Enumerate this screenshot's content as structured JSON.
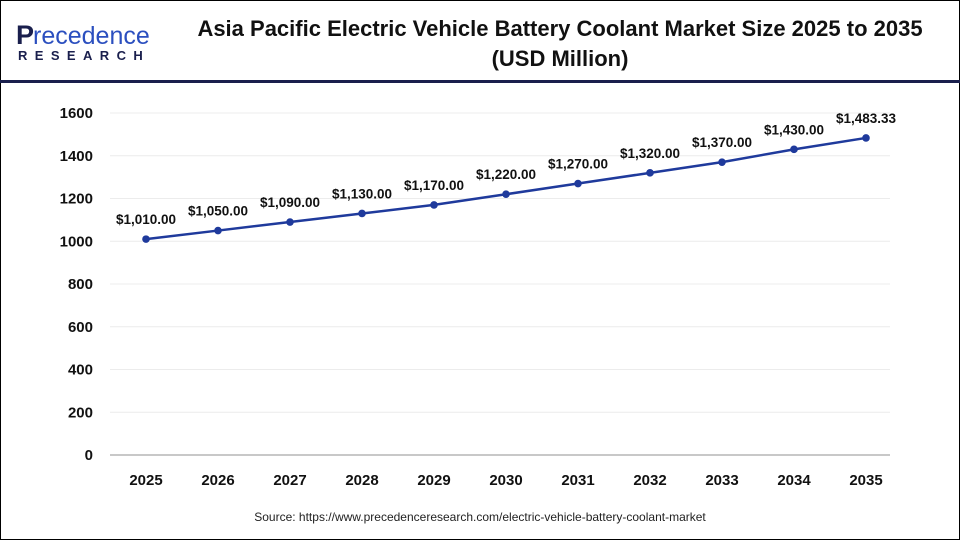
{
  "brand": {
    "logo_text": "Precedence",
    "logo_subtext": "RESEARCH"
  },
  "header": {
    "title_line1": "Asia Pacific Electric Vehicle Battery Coolant Market Size 2025 to 2035",
    "title_line2": "(USD Million)"
  },
  "source": "Source: https://www.precedenceresearch.com/electric-vehicle-battery-coolant-market",
  "chart_data": {
    "type": "line",
    "title": "Asia Pacific Electric Vehicle Battery Coolant Market Size 2025 to 2035 (USD Million)",
    "categories": [
      "2025",
      "2026",
      "2027",
      "2028",
      "2029",
      "2030",
      "2031",
      "2032",
      "2033",
      "2034",
      "2035"
    ],
    "values": [
      1010,
      1050,
      1090,
      1130,
      1170,
      1220,
      1270,
      1320,
      1370,
      1430,
      1483.33
    ],
    "data_labels": [
      "$1,010.00",
      "$1,050.00",
      "$1,090.00",
      "$1,130.00",
      "$1,170.00",
      "$1,220.00",
      "$1,270.00",
      "$1,320.00",
      "$1,370.00",
      "$1,430.00",
      "$1,483.33"
    ],
    "yticks": [
      0,
      200,
      400,
      600,
      800,
      1000,
      1200,
      1400,
      1600
    ],
    "ylim": [
      0,
      1600
    ],
    "grid": true,
    "line_color": "#1f3a9c",
    "legend": "none"
  }
}
